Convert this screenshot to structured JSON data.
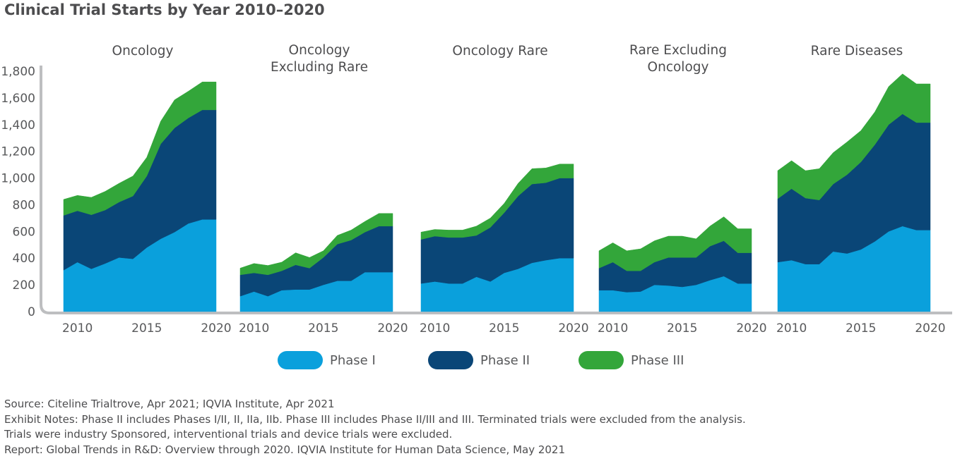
{
  "title": "Clinical Trial Starts by Year 2010–2020",
  "colors": {
    "phase1": "#0aa0dc",
    "phase2": "#0a4677",
    "phase3": "#33a63a",
    "axis": "#bdbec0"
  },
  "legend": [
    {
      "key": "phase1",
      "label": "Phase I"
    },
    {
      "key": "phase2",
      "label": "Phase II"
    },
    {
      "key": "phase3",
      "label": "Phase III"
    }
  ],
  "notes": [
    "Source: Citeline Trialtrove, Apr 2021; IQVIA Institute, Apr 2021",
    "Exhibit Notes: Phase II includes Phases I/II, II, IIa, IIb. Phase III includes Phase II/III and III. Terminated trials were excluded from the analysis.",
    "Trials were industry Sponsored, interventional trials and device trials were excluded.",
    "Report: Global Trends in R&D: Overview through 2020. IQVIA Institute for Human Data Science, May 2021"
  ],
  "chart_data": {
    "type": "area",
    "stacked": true,
    "ylim": [
      0,
      1800
    ],
    "yticks": [
      0,
      200,
      400,
      600,
      800,
      1000,
      1200,
      1400,
      1600,
      1800
    ],
    "ytick_labels": [
      "0",
      "200",
      "400",
      "600",
      "800",
      "1,000",
      "1,200",
      "1,400",
      "1,600",
      "1,800"
    ],
    "xticks": [
      2010,
      2015,
      2020
    ],
    "x": [
      2009,
      2010,
      2011,
      2012,
      2013,
      2014,
      2015,
      2016,
      2017,
      2018,
      2019,
      2020
    ],
    "legend_position": "bottom",
    "panels": [
      {
        "title_lines": [
          "Oncology"
        ],
        "series": [
          {
            "name": "Phase I",
            "values": [
              310,
              370,
              320,
              360,
              405,
              395,
              480,
              545,
              595,
              660,
              690,
              690
            ]
          },
          {
            "name": "Phase II",
            "values": [
              410,
              385,
              405,
              400,
              415,
              470,
              535,
              710,
              780,
              790,
              820,
              820
            ]
          },
          {
            "name": "Phase III",
            "values": [
              120,
              115,
              130,
              140,
              140,
              150,
              140,
              170,
              210,
              200,
              210,
              210
            ]
          }
        ]
      },
      {
        "title_lines": [
          "Oncology",
          "Excluding Rare"
        ],
        "series": [
          {
            "name": "Phase I",
            "values": [
              115,
              150,
              115,
              160,
              165,
              165,
              200,
              230,
              230,
              295,
              295,
              295
            ]
          },
          {
            "name": "Phase II",
            "values": [
              160,
              140,
              160,
              145,
              185,
              160,
              205,
              275,
              305,
              300,
              345,
              345
            ]
          },
          {
            "name": "Phase III",
            "values": [
              50,
              70,
              70,
              65,
              90,
              80,
              50,
              65,
              75,
              80,
              95,
              95
            ]
          }
        ]
      },
      {
        "title_lines": [
          "Oncology Rare"
        ],
        "series": [
          {
            "name": "Phase I",
            "values": [
              210,
              225,
              210,
              210,
              260,
              225,
              290,
              320,
              365,
              385,
              400,
              400
            ]
          },
          {
            "name": "Phase II",
            "values": [
              330,
              340,
              345,
              345,
              310,
              405,
              450,
              545,
              590,
              580,
              600,
              600
            ]
          },
          {
            "name": "Phase III",
            "values": [
              55,
              50,
              55,
              55,
              70,
              70,
              70,
              95,
              115,
              110,
              105,
              105
            ]
          }
        ]
      },
      {
        "title_lines": [
          "Rare Excluding",
          "Oncology"
        ],
        "series": [
          {
            "name": "Phase I",
            "values": [
              160,
              160,
              145,
              150,
              200,
              195,
              185,
              200,
              235,
              265,
              210,
              210
            ]
          },
          {
            "name": "Phase II",
            "values": [
              165,
              210,
              160,
              155,
              170,
              210,
              220,
              205,
              255,
              265,
              230,
              230
            ]
          },
          {
            "name": "Phase III",
            "values": [
              130,
              145,
              150,
              165,
              160,
              160,
              160,
              140,
              150,
              180,
              180,
              180
            ]
          }
        ]
      },
      {
        "title_lines": [
          "Rare Diseases"
        ],
        "series": [
          {
            "name": "Phase I",
            "values": [
              370,
              385,
              355,
              355,
              450,
              435,
              465,
              525,
              600,
              640,
              610,
              610
            ]
          },
          {
            "name": "Phase II",
            "values": [
              475,
              535,
              495,
              480,
              505,
              590,
              655,
              725,
              800,
              840,
              805,
              805
            ]
          },
          {
            "name": "Phase III",
            "values": [
              210,
              210,
              205,
              235,
              235,
              245,
              235,
              245,
              285,
              300,
              290,
              290
            ]
          }
        ]
      }
    ]
  }
}
